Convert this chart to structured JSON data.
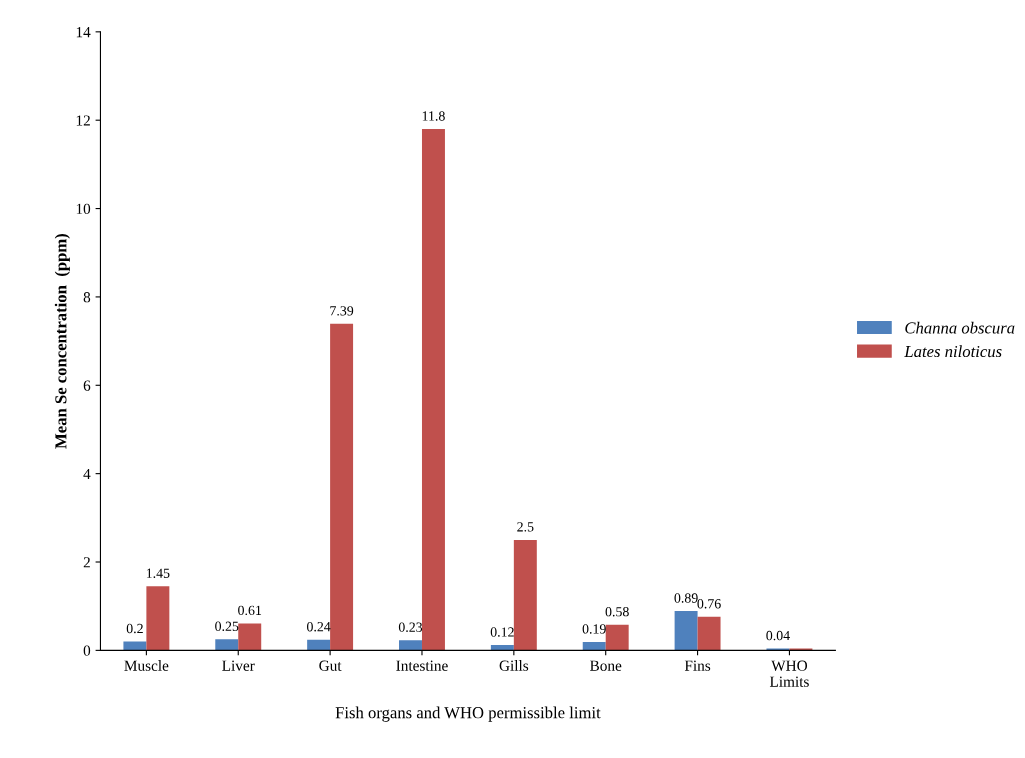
{
  "chart_data": {
    "type": "bar",
    "xlabel": "Fish organs and WHO permissible limit",
    "ylabel": "Mean Se concentration  (ppm)",
    "categories": [
      "Muscle",
      "Liver",
      "Gut",
      "Intestine",
      "Gills",
      "Bone",
      "Fins",
      "WHO\nLimits"
    ],
    "series": [
      {
        "name": "Channa obscura",
        "color": "#4f81bd",
        "values": [
          0.2,
          0.25,
          0.24,
          0.23,
          0.12,
          0.19,
          0.89,
          0.04
        ],
        "value_labels": [
          "0.2",
          "0.25",
          "0.24",
          "0.23",
          "0.12",
          "0.19",
          "0.89",
          "0.04"
        ]
      },
      {
        "name": "Lates niloticus",
        "color": "#c0504d",
        "values": [
          1.45,
          0.61,
          7.39,
          11.8,
          2.5,
          0.58,
          0.76,
          0.04
        ],
        "value_labels": [
          "1.45",
          "0.61",
          "7.39",
          "11.8",
          "2.5",
          "0.58",
          "0.76",
          null
        ]
      }
    ],
    "ylim": [
      0,
      14
    ],
    "yticks": [
      0,
      2,
      4,
      6,
      8,
      10,
      12,
      14
    ],
    "grid": false,
    "legend": "right"
  }
}
